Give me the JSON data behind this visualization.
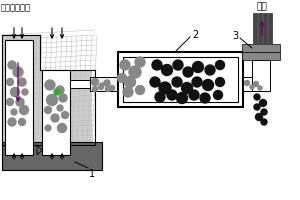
{
  "bg_color": "#ffffff",
  "text_topleft": "放气（氮气）",
  "label1": "1",
  "label2": "2",
  "label3": "3",
  "label_waste": "废气",
  "line_color": "#000000",
  "gray_light": "#cccccc",
  "gray_medium": "#888888",
  "gray_dark": "#666666",
  "gray_darker": "#444444",
  "gray_particles": "#888888",
  "black_particles": "#111111",
  "green_particle": "#33aa33",
  "arrow_color": "#660066"
}
